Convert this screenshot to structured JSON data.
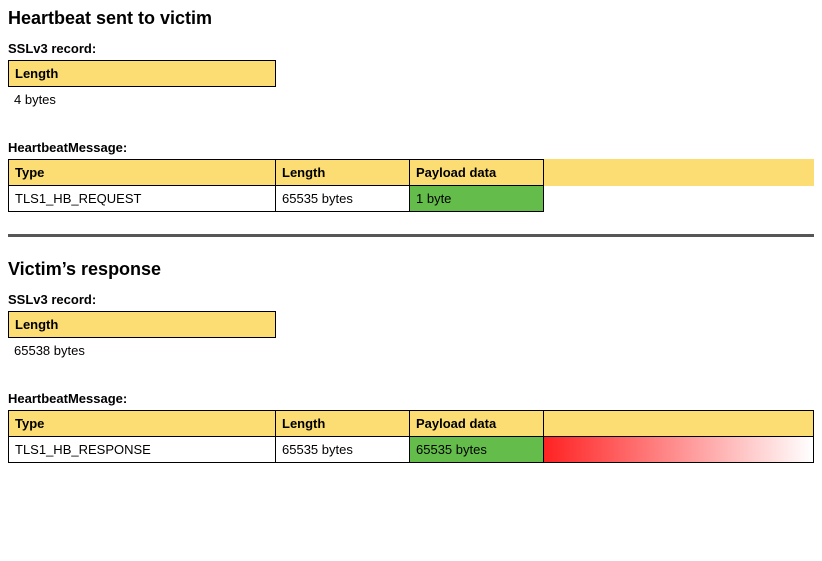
{
  "colors": {
    "yellow": "#fbdd73",
    "green": "#64bd4a",
    "red_start": "#ff2223",
    "red_end": "#ffffff",
    "divider": "#565656",
    "border": "#000000",
    "text": "#000000",
    "background": "#ffffff"
  },
  "layout": {
    "total_width": 806,
    "col_type_width": 268,
    "col_length_width": 134,
    "col_payload_width": 134,
    "divider_height": 3,
    "section_title_fontsize": 18,
    "body_fontsize": 13
  },
  "sent": {
    "title": "Heartbeat sent to victim",
    "sslv3": {
      "heading": "SSLv3 record:",
      "header": "Length",
      "value": "4 bytes"
    },
    "heartbeat": {
      "heading": "HeartbeatMessage:",
      "headers": {
        "type": "Type",
        "length": "Length",
        "payload": "Payload data"
      },
      "values": {
        "type": "TLS1_HB_REQUEST",
        "length": "65535 bytes",
        "payload": "1 byte"
      }
    }
  },
  "response": {
    "title": "Victim’s response",
    "sslv3": {
      "heading": "SSLv3 record:",
      "header": "Length",
      "value": "65538 bytes"
    },
    "heartbeat": {
      "heading": "HeartbeatMessage:",
      "headers": {
        "type": "Type",
        "length": "Length",
        "payload": "Payload data"
      },
      "values": {
        "type": "TLS1_HB_RESPONSE",
        "length": "65535 bytes",
        "payload": "65535 bytes"
      }
    }
  }
}
